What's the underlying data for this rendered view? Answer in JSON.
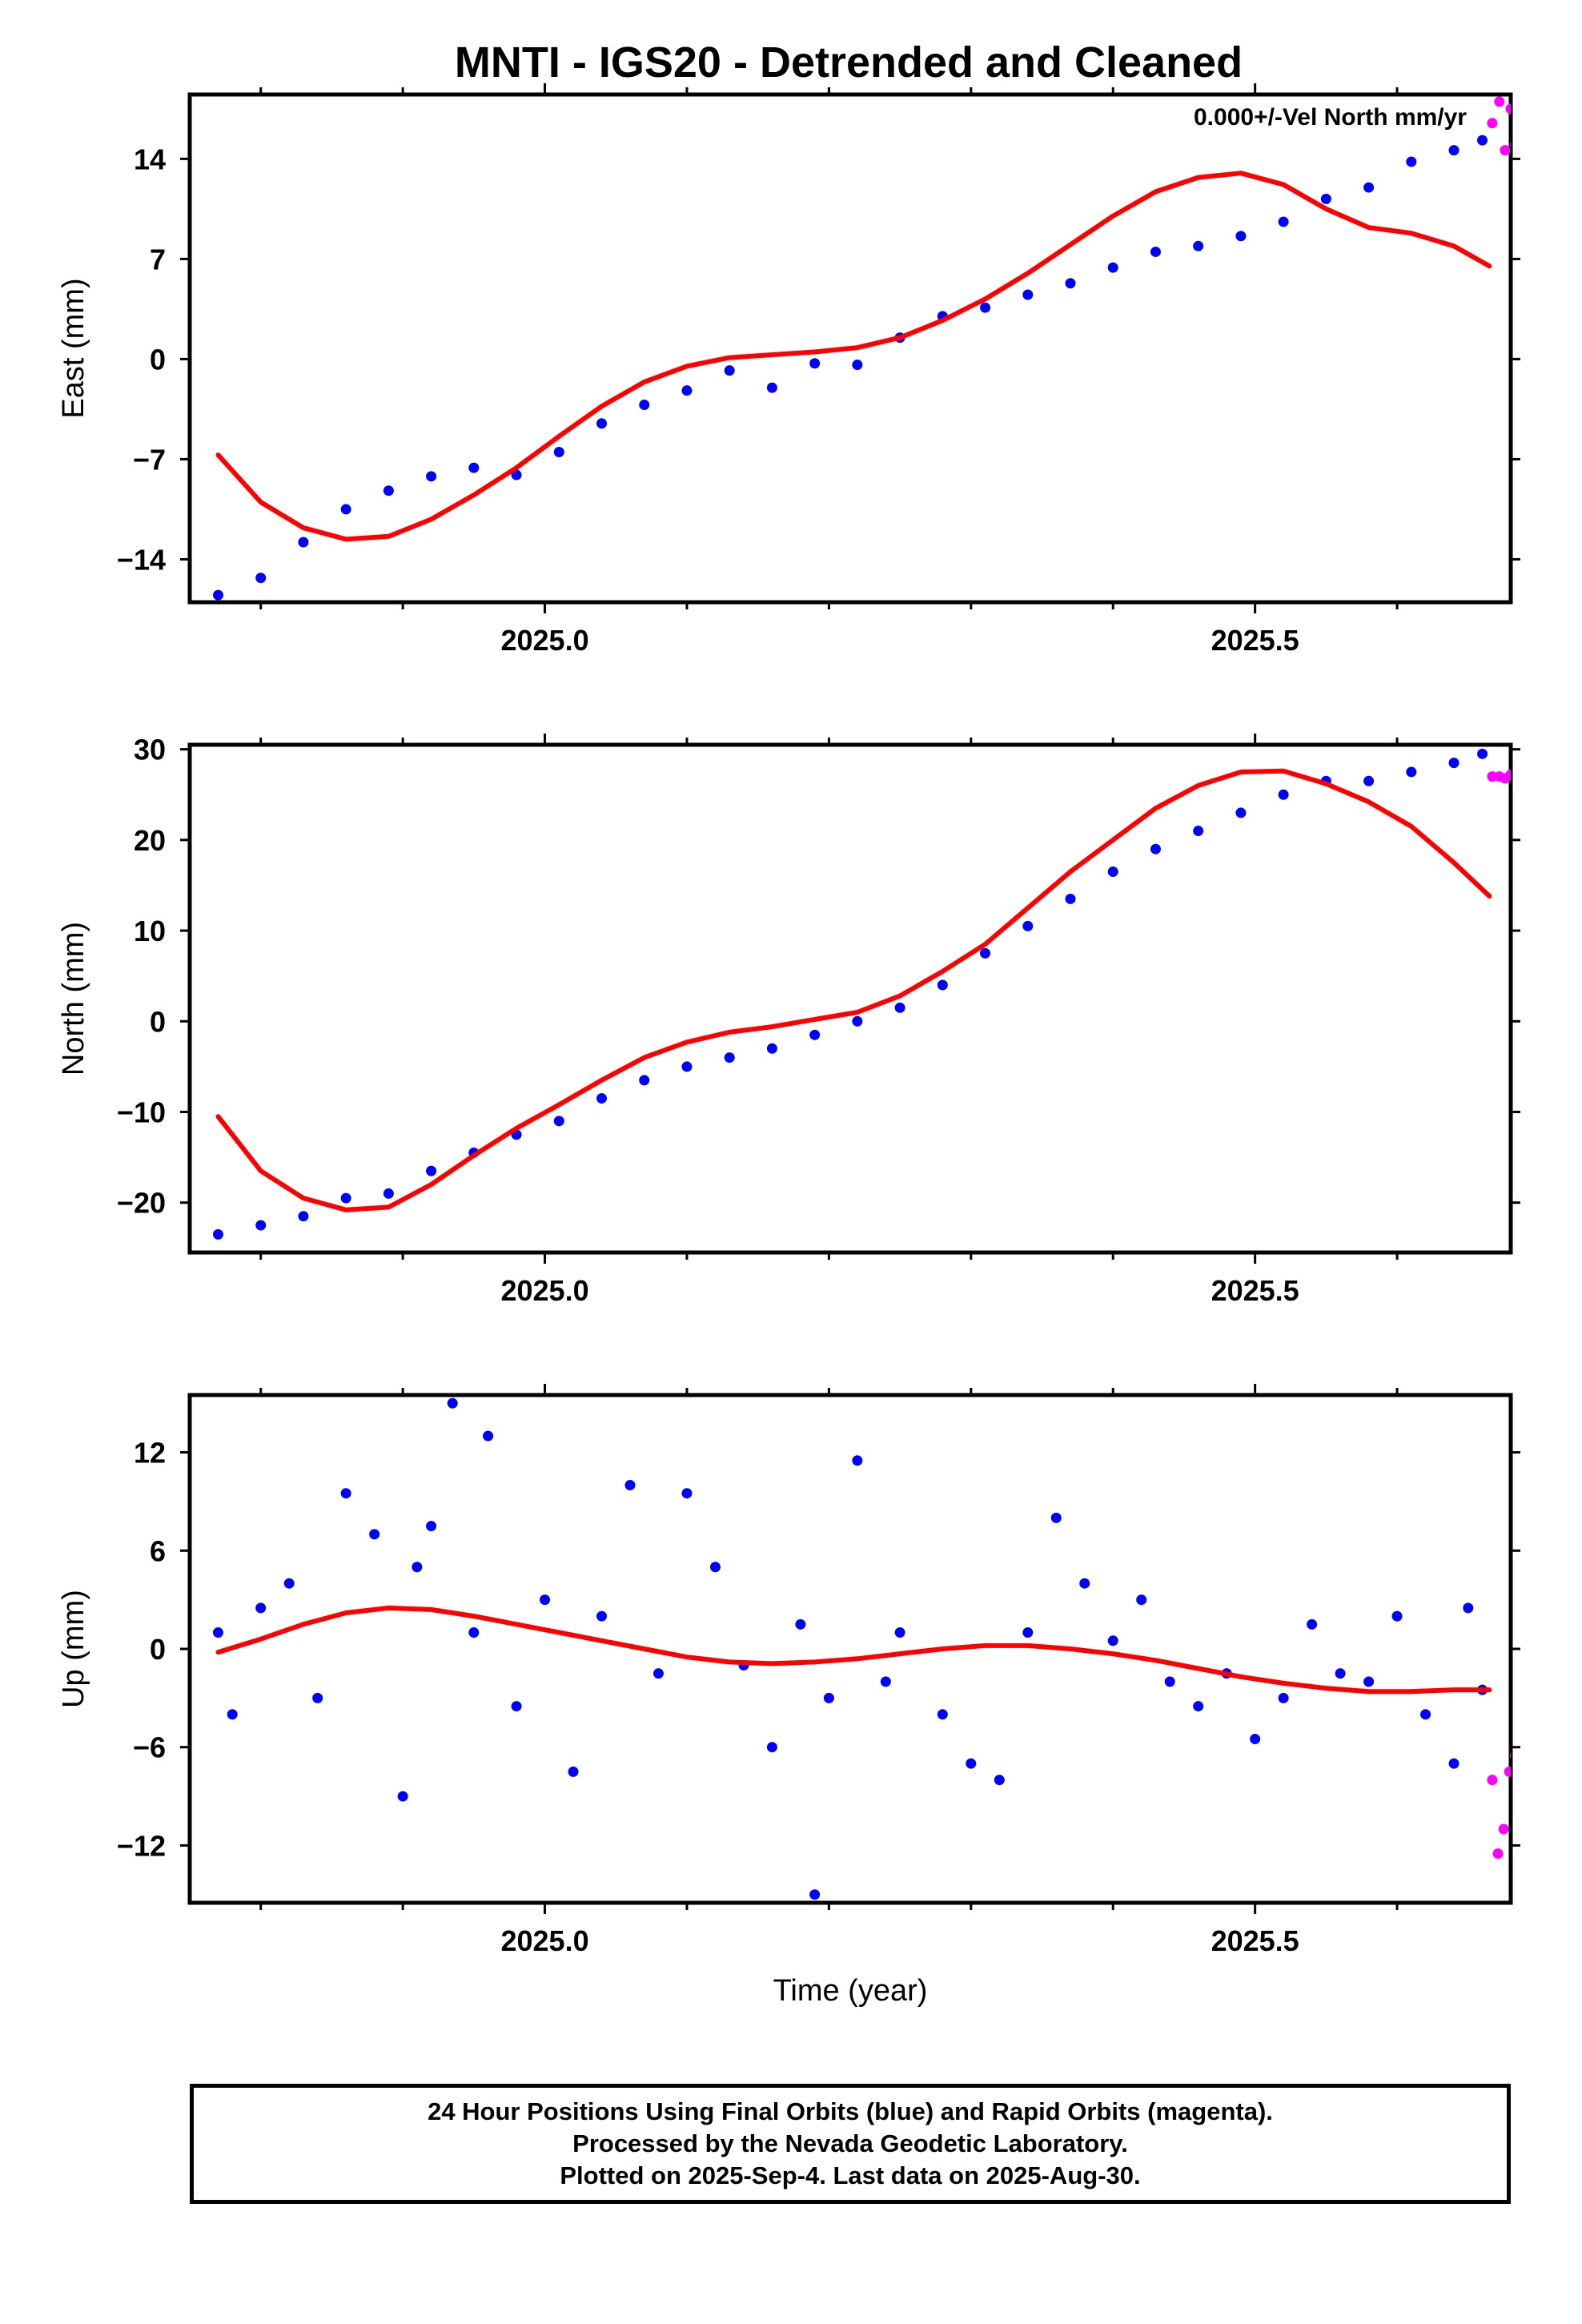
{
  "figure": {
    "title": "MNTI - IGS20 - Detrended and Cleaned",
    "annotation": "0.000+/-Vel North mm/yr",
    "xlabel": "Time (year)",
    "footer": [
      "24 Hour Positions Using Final Orbits (blue) and Rapid Orbits (magenta).",
      "Processed by the Nevada Geodetic Laboratory.",
      "Plotted on 2025-Sep-4. Last data on 2025-Aug-30."
    ]
  },
  "colors": {
    "final_orbits": "#0000ff",
    "rapid_orbits": "#ff00ff",
    "fit": "#ff0000",
    "frame": "#000000"
  },
  "chart_data": [
    {
      "type": "scatter",
      "ylabel": "East (mm)",
      "xlim": [
        2024.75,
        2025.68
      ],
      "ylim": [
        -17,
        18.5
      ],
      "x_ticks": [
        2025.0,
        2025.5
      ],
      "x_tick_labels": [
        "2025.0",
        "2025.5"
      ],
      "x_minor_ticks": [
        2024.8,
        2024.9,
        2025.1,
        2025.2,
        2025.3,
        2025.4,
        2025.6
      ],
      "y_ticks": [
        -14,
        -7,
        0,
        7,
        14
      ],
      "y_tick_labels": [
        "−14",
        "−7",
        "0",
        "7",
        "14"
      ],
      "grid": false,
      "series": [
        {
          "color": "#0000ff",
          "x": [
            2024.77,
            2024.8,
            2024.83,
            2024.86,
            2024.89,
            2024.92,
            2024.95,
            2024.98,
            2025.01,
            2025.04,
            2025.07,
            2025.1,
            2025.13,
            2025.16,
            2025.19,
            2025.22,
            2025.25,
            2025.28,
            2025.31,
            2025.34,
            2025.37,
            2025.4,
            2025.43,
            2025.46,
            2025.49,
            2025.52,
            2025.55,
            2025.58,
            2025.61,
            2025.64,
            2025.66
          ],
          "y": [
            -16.5,
            -15.3,
            -12.8,
            -10.5,
            -9.2,
            -8.2,
            -7.6,
            -8.1,
            -6.5,
            -4.5,
            -3.2,
            -2.2,
            -0.8,
            -2.0,
            -0.3,
            -0.4,
            1.5,
            3.0,
            3.6,
            4.5,
            5.3,
            6.4,
            7.5,
            7.9,
            8.6,
            9.6,
            11.2,
            12.0,
            13.8,
            14.6,
            15.3
          ]
        },
        {
          "color": "#ff00ff",
          "x": [
            2025.667,
            2025.672,
            2025.676,
            2025.68,
            2025.683
          ],
          "y": [
            16.5,
            18.0,
            14.6,
            17.5,
            15.0
          ]
        },
        {
          "color": "#ff0000",
          "style": "line",
          "x": [
            2024.77,
            2024.8,
            2024.83,
            2024.86,
            2024.89,
            2024.92,
            2024.95,
            2024.98,
            2025.01,
            2025.04,
            2025.07,
            2025.1,
            2025.13,
            2025.16,
            2025.19,
            2025.22,
            2025.25,
            2025.28,
            2025.31,
            2025.34,
            2025.37,
            2025.4,
            2025.43,
            2025.46,
            2025.49,
            2025.52,
            2025.55,
            2025.58,
            2025.61,
            2025.64,
            2025.665
          ],
          "y": [
            -6.7,
            -10.0,
            -11.8,
            -12.6,
            -12.4,
            -11.2,
            -9.5,
            -7.6,
            -5.4,
            -3.3,
            -1.6,
            -0.5,
            0.1,
            0.3,
            0.5,
            0.8,
            1.5,
            2.7,
            4.2,
            6.0,
            8.0,
            10.0,
            11.7,
            12.7,
            13.0,
            12.2,
            10.5,
            9.2,
            8.8,
            7.9,
            6.5
          ]
        }
      ]
    },
    {
      "type": "scatter",
      "ylabel": "North (mm)",
      "xlim": [
        2024.75,
        2025.68
      ],
      "ylim": [
        -25.5,
        30.5
      ],
      "x_ticks": [
        2025.0,
        2025.5
      ],
      "x_tick_labels": [
        "2025.0",
        "2025.5"
      ],
      "x_minor_ticks": [
        2024.8,
        2024.9,
        2025.1,
        2025.2,
        2025.3,
        2025.4,
        2025.6
      ],
      "y_ticks": [
        -20,
        -10,
        0,
        10,
        20,
        30
      ],
      "y_tick_labels": [
        "−20",
        "−10",
        "0",
        "10",
        "20",
        "30"
      ],
      "grid": false,
      "series": [
        {
          "color": "#0000ff",
          "x": [
            2024.77,
            2024.8,
            2024.83,
            2024.86,
            2024.89,
            2024.92,
            2024.95,
            2024.98,
            2025.01,
            2025.04,
            2025.07,
            2025.1,
            2025.13,
            2025.16,
            2025.19,
            2025.22,
            2025.25,
            2025.28,
            2025.31,
            2025.34,
            2025.37,
            2025.4,
            2025.43,
            2025.46,
            2025.49,
            2025.52,
            2025.55,
            2025.58,
            2025.61,
            2025.64,
            2025.66
          ],
          "y": [
            -23.5,
            -22.5,
            -21.5,
            -19.5,
            -19.0,
            -16.5,
            -14.5,
            -12.5,
            -11.0,
            -8.5,
            -6.5,
            -5.0,
            -4.0,
            -3.0,
            -1.5,
            0.0,
            1.5,
            4.0,
            7.5,
            10.5,
            13.5,
            16.5,
            19.0,
            21.0,
            23.0,
            25.0,
            26.5,
            26.5,
            27.5,
            28.5,
            29.5
          ]
        },
        {
          "color": "#ff00ff",
          "x": [
            2025.667,
            2025.672,
            2025.676,
            2025.68,
            2025.683
          ],
          "y": [
            27.0,
            27.0,
            26.8,
            27.2,
            26.8
          ]
        },
        {
          "color": "#ff0000",
          "style": "line",
          "x": [
            2024.77,
            2024.8,
            2024.83,
            2024.86,
            2024.89,
            2024.92,
            2024.95,
            2024.98,
            2025.01,
            2025.04,
            2025.07,
            2025.1,
            2025.13,
            2025.16,
            2025.19,
            2025.22,
            2025.25,
            2025.28,
            2025.31,
            2025.34,
            2025.37,
            2025.4,
            2025.43,
            2025.46,
            2025.49,
            2025.52,
            2025.55,
            2025.58,
            2025.61,
            2025.64,
            2025.665
          ],
          "y": [
            -10.5,
            -16.5,
            -19.5,
            -20.8,
            -20.5,
            -18.0,
            -14.8,
            -11.8,
            -9.2,
            -6.5,
            -4.0,
            -2.3,
            -1.2,
            -0.6,
            0.2,
            1.0,
            2.8,
            5.5,
            8.5,
            12.5,
            16.5,
            20.0,
            23.5,
            26.0,
            27.5,
            27.6,
            26.2,
            24.2,
            21.5,
            17.5,
            13.8
          ]
        }
      ]
    },
    {
      "type": "scatter",
      "ylabel": "Up (mm)",
      "xlabel": "Time (year)",
      "xlim": [
        2024.75,
        2025.68
      ],
      "ylim": [
        -15.5,
        15.5
      ],
      "x_ticks": [
        2025.0,
        2025.5
      ],
      "x_tick_labels": [
        "2025.0",
        "2025.5"
      ],
      "x_minor_ticks": [
        2024.8,
        2024.9,
        2025.1,
        2025.2,
        2025.3,
        2025.4,
        2025.6
      ],
      "y_ticks": [
        -12,
        -6,
        0,
        6,
        12
      ],
      "y_tick_labels": [
        "−12",
        "−6",
        "0",
        "6",
        "12"
      ],
      "grid": false,
      "series": [
        {
          "color": "#0000ff",
          "x": [
            2024.77,
            2024.78,
            2024.8,
            2024.82,
            2024.84,
            2024.86,
            2024.88,
            2024.9,
            2024.91,
            2024.92,
            2024.935,
            2024.95,
            2024.96,
            2024.98,
            2025.0,
            2025.02,
            2025.04,
            2025.06,
            2025.08,
            2025.1,
            2025.12,
            2025.14,
            2025.16,
            2025.18,
            2025.19,
            2025.2,
            2025.22,
            2025.24,
            2025.25,
            2025.28,
            2025.3,
            2025.32,
            2025.34,
            2025.36,
            2025.38,
            2025.4,
            2025.42,
            2025.44,
            2025.46,
            2025.48,
            2025.5,
            2025.52,
            2025.54,
            2025.56,
            2025.58,
            2025.6,
            2025.62,
            2025.64,
            2025.65,
            2025.66
          ],
          "y": [
            1.0,
            -4.0,
            2.5,
            4.0,
            -3.0,
            9.5,
            7.0,
            -9.0,
            5.0,
            7.5,
            15.0,
            1.0,
            13.0,
            -3.5,
            3.0,
            -7.5,
            2.0,
            10.0,
            -1.5,
            9.5,
            5.0,
            -1.0,
            -6.0,
            1.5,
            -15.0,
            -3.0,
            11.5,
            -2.0,
            1.0,
            -4.0,
            -7.0,
            -8.0,
            1.0,
            8.0,
            4.0,
            0.5,
            3.0,
            -2.0,
            -3.5,
            -1.5,
            -5.5,
            -3.0,
            1.5,
            -1.5,
            -2.0,
            2.0,
            -4.0,
            -7.0,
            2.5,
            -2.5
          ]
        },
        {
          "color": "#ff00ff",
          "x": [
            2025.667,
            2025.671,
            2025.675,
            2025.679,
            2025.683
          ],
          "y": [
            -8.0,
            -12.5,
            -11.0,
            -7.5,
            -6.5
          ]
        },
        {
          "color": "#ff0000",
          "style": "line",
          "x": [
            2024.77,
            2024.8,
            2024.83,
            2024.86,
            2024.89,
            2024.92,
            2024.95,
            2024.98,
            2025.01,
            2025.04,
            2025.07,
            2025.1,
            2025.13,
            2025.16,
            2025.19,
            2025.22,
            2025.25,
            2025.28,
            2025.31,
            2025.34,
            2025.37,
            2025.4,
            2025.43,
            2025.46,
            2025.49,
            2025.52,
            2025.55,
            2025.58,
            2025.61,
            2025.64,
            2025.665
          ],
          "y": [
            -0.2,
            0.6,
            1.5,
            2.2,
            2.5,
            2.4,
            2.0,
            1.5,
            1.0,
            0.5,
            0.0,
            -0.5,
            -0.8,
            -0.9,
            -0.8,
            -0.6,
            -0.3,
            0.0,
            0.2,
            0.2,
            0.0,
            -0.3,
            -0.7,
            -1.2,
            -1.7,
            -2.1,
            -2.4,
            -2.6,
            -2.6,
            -2.5,
            -2.5
          ]
        }
      ]
    }
  ]
}
